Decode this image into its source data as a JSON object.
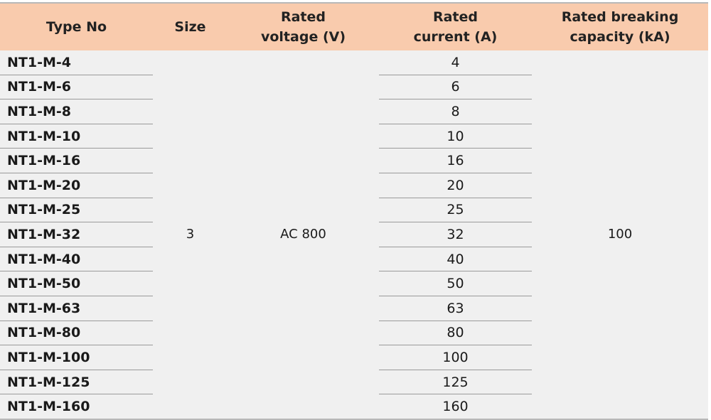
{
  "header": {
    "colors": {
      "header_bg": "#f9cbad",
      "body_bg": "#f0f0f0"
    },
    "columns": [
      "Type No",
      "Size",
      "Rated voltage (V)",
      "Rated current (A)",
      "Rated breaking capacity (kA)"
    ],
    "columns_lines": [
      [
        "Type No"
      ],
      [
        "Size"
      ],
      [
        "Rated",
        "voltage (V)"
      ],
      [
        "Rated",
        "current (A)"
      ],
      [
        "Rated breaking",
        "capacity (kA)"
      ]
    ]
  },
  "shared": {
    "size": "3",
    "voltage": "AC 800",
    "breaking_capacity": "100"
  },
  "rows": [
    {
      "type": "NT1-M-4",
      "current": "4"
    },
    {
      "type": "NT1-M-6",
      "current": "6"
    },
    {
      "type": "NT1-M-8",
      "current": "8"
    },
    {
      "type": "NT1-M-10",
      "current": "10"
    },
    {
      "type": "NT1-M-16",
      "current": "16"
    },
    {
      "type": "NT1-M-20",
      "current": "20"
    },
    {
      "type": "NT1-M-25",
      "current": "25"
    },
    {
      "type": "NT1-M-32",
      "current": "32"
    },
    {
      "type": "NT1-M-40",
      "current": "40"
    },
    {
      "type": "NT1-M-50",
      "current": "50"
    },
    {
      "type": "NT1-M-63",
      "current": "63"
    },
    {
      "type": "NT1-M-80",
      "current": "80"
    },
    {
      "type": "NT1-M-100",
      "current": "100"
    },
    {
      "type": "NT1-M-125",
      "current": "125"
    },
    {
      "type": "NT1-M-160",
      "current": "160"
    }
  ]
}
